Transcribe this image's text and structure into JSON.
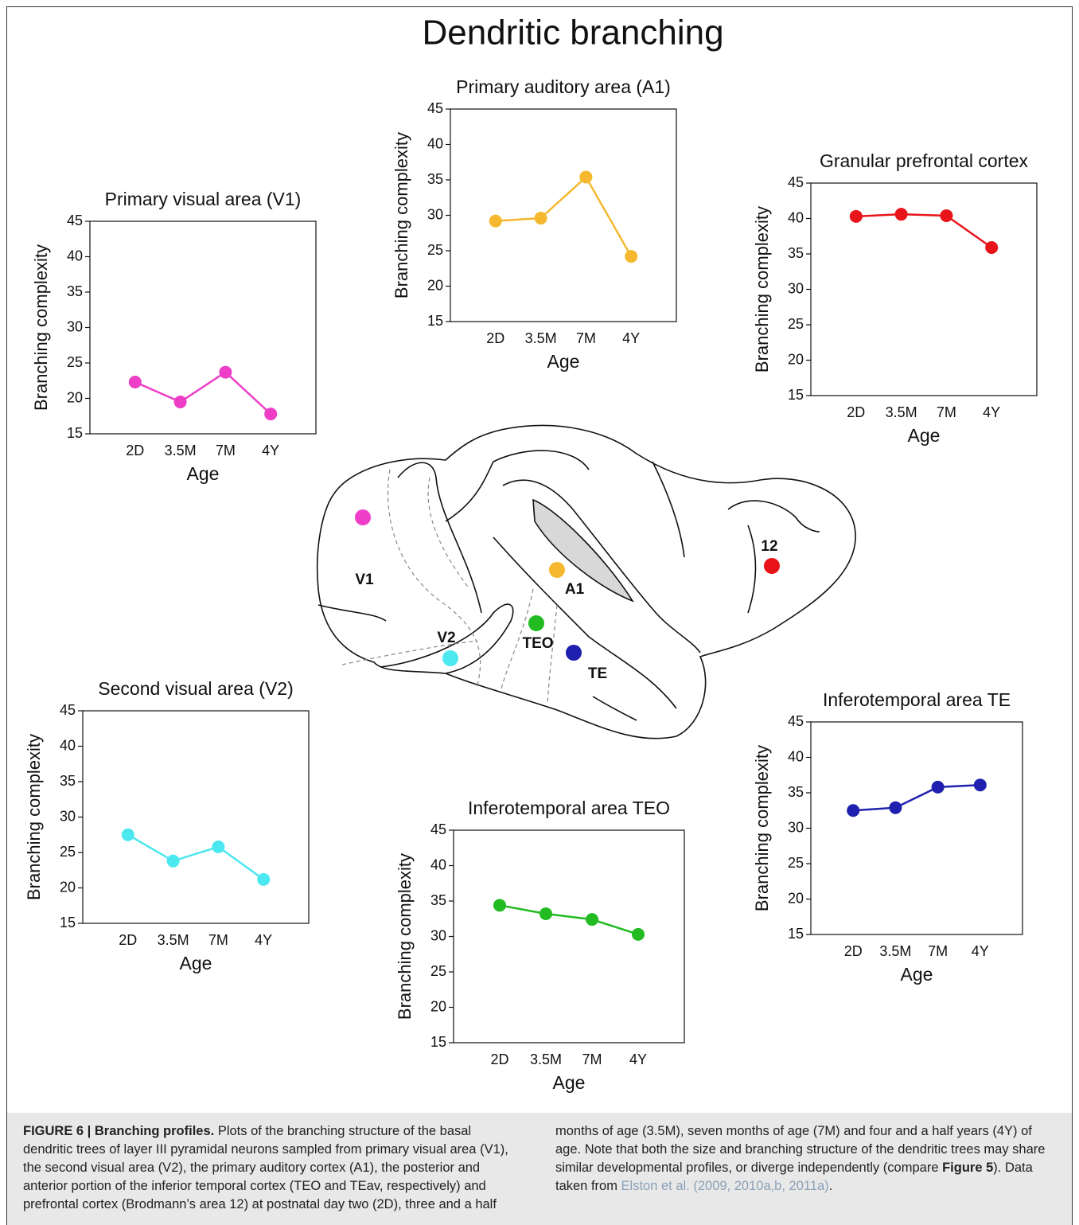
{
  "title": "Dendritic branching",
  "chart_data": [
    {
      "type": "line",
      "title": "Primary visual area (V1)",
      "x_label": "Age",
      "y_label": "Branching complexity",
      "categories": [
        "2D",
        "3.5M",
        "7M",
        "4Y"
      ],
      "values": [
        22.3,
        19.5,
        23.7,
        17.8
      ],
      "color": "#ee3ec8",
      "ylim": [
        15,
        45
      ],
      "yticks": [
        15,
        20,
        25,
        30,
        35,
        40,
        45
      ]
    },
    {
      "type": "line",
      "title": "Primary auditory area (A1)",
      "x_label": "Age",
      "y_label": "Branching complexity",
      "categories": [
        "2D",
        "3.5M",
        "7M",
        "4Y"
      ],
      "values": [
        29.2,
        29.6,
        35.4,
        24.2
      ],
      "color": "#f5b82e",
      "ylim": [
        15,
        45
      ],
      "yticks": [
        15,
        20,
        25,
        30,
        35,
        40,
        45
      ]
    },
    {
      "type": "line",
      "title": "Granular prefrontal cortex",
      "x_label": "Age",
      "y_label": "Branching complexity",
      "categories": [
        "2D",
        "3.5M",
        "7M",
        "4Y"
      ],
      "values": [
        40.3,
        40.6,
        40.4,
        35.9
      ],
      "color": "#e8141a",
      "ylim": [
        15,
        45
      ],
      "yticks": [
        15,
        20,
        25,
        30,
        35,
        40,
        45
      ]
    },
    {
      "type": "line",
      "title": "Second visual area (V2)",
      "x_label": "Age",
      "y_label": "Branching complexity",
      "categories": [
        "2D",
        "3.5M",
        "7M",
        "4Y"
      ],
      "values": [
        27.5,
        23.8,
        25.8,
        21.2
      ],
      "color": "#4ce8ef",
      "ylim": [
        15,
        45
      ],
      "yticks": [
        15,
        20,
        25,
        30,
        35,
        40,
        45
      ]
    },
    {
      "type": "line",
      "title": "Inferotemporal area TEO",
      "x_label": "Age",
      "y_label": "Branching complexity",
      "categories": [
        "2D",
        "3.5M",
        "7M",
        "4Y"
      ],
      "values": [
        34.4,
        33.2,
        32.4,
        30.3
      ],
      "color": "#22bb22",
      "ylim": [
        15,
        45
      ],
      "yticks": [
        15,
        20,
        25,
        30,
        35,
        40,
        45
      ]
    },
    {
      "type": "line",
      "title": "Inferotemporal area TE",
      "x_label": "Age",
      "y_label": "Branching complexity",
      "categories": [
        "2D",
        "3.5M",
        "7M",
        "4Y"
      ],
      "values": [
        32.5,
        32.9,
        35.8,
        36.1
      ],
      "color": "#1f1fb0",
      "ylim": [
        15,
        45
      ],
      "yticks": [
        15,
        20,
        25,
        30,
        35,
        40,
        45
      ]
    }
  ],
  "brain": {
    "labels": [
      "V1",
      "V2",
      "A1",
      "TEO",
      "TE",
      "12"
    ]
  },
  "caption": {
    "label": "FIGURE 6 | Branching profiles.",
    "text_1": "Plots of the branching structure of the basal dendritic trees of layer III pyramidal neurons sampled from primary visual area (V1), the second visual area (V2), the primary auditory cortex (A1), the posterior and anterior portion of the inferior temporal cortex (TEO and TEav, respectively) and prefrontal cortex (Brodmann’s area 12) at postnatal day two (2D), three and a half months of age (3.5M), seven months of age (7M) and four and a half years (4Y) of age. Note that both the size and branching structure of the dendritic trees may share similar developmental profiles, or diverge independently (compare",
    "figure_ref": "Figure 5",
    "text_2": "). Data taken from",
    "citation": "Elston et al. (2009, 2010a,b, 2011a)",
    "text_3": "."
  }
}
